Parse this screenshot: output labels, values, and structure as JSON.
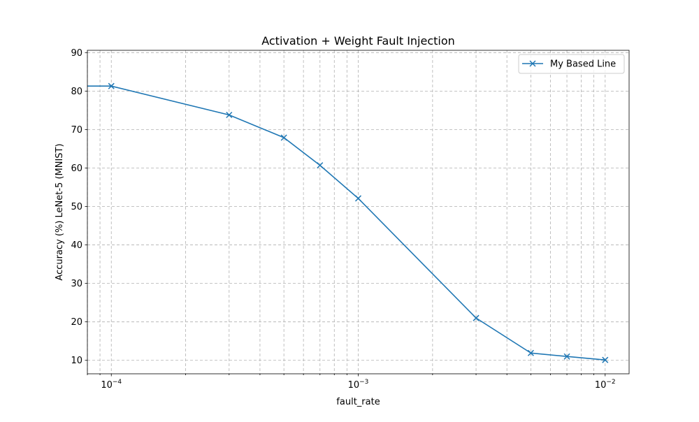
{
  "chart_data": {
    "type": "line",
    "title": "Activation + Weight Fault Injection",
    "xlabel": "fault_rate",
    "ylabel": "Accuracy (%) LeNet-5 (MNIST)",
    "x_scale": "log",
    "xlim": [
      8e-05,
      0.0125
    ],
    "ylim": [
      6.5,
      90.6
    ],
    "grid": true,
    "grid_style": "dashed, major and minor",
    "legend_position": "top-right",
    "x_ticks": [
      {
        "value": 0.0001,
        "base": "10",
        "exp": "−4"
      },
      {
        "value": 0.001,
        "base": "10",
        "exp": "−3"
      },
      {
        "value": 0.01,
        "base": "10",
        "exp": "−2"
      }
    ],
    "y_ticks": [
      10,
      20,
      30,
      40,
      50,
      60,
      70,
      80,
      90
    ],
    "series": [
      {
        "name": "My Based Line",
        "color": "#1f77b4",
        "marker": "x",
        "x": [
          0.0001,
          0.0003,
          0.0005,
          0.0007,
          0.001,
          0.003,
          0.005,
          0.007,
          0.01
        ],
        "y": [
          81.3,
          73.8,
          67.9,
          60.7,
          52.1,
          21.0,
          11.9,
          11.0,
          10.1
        ],
        "extends_left_to_axis": 81.3
      }
    ]
  }
}
